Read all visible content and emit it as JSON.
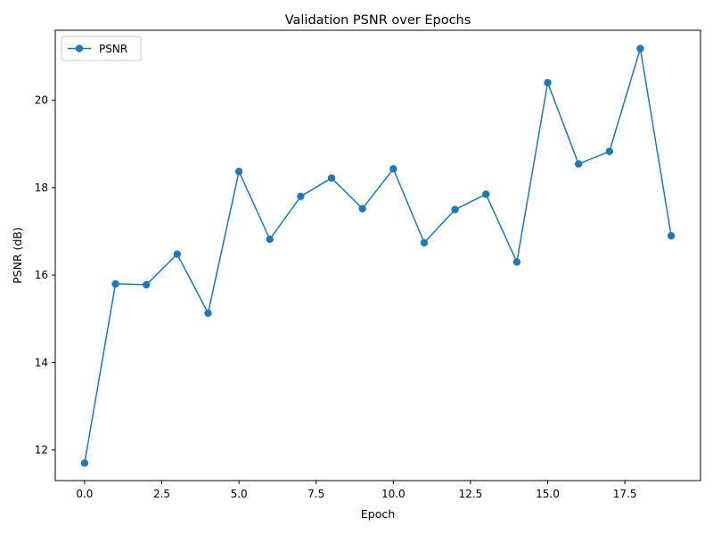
{
  "chart_data": {
    "type": "line",
    "title": "Validation PSNR over Epochs",
    "xlabel": "Epoch",
    "ylabel": "PSNR (dB)",
    "xlim": [
      -0.95,
      19.95
    ],
    "ylim": [
      11.3,
      21.6
    ],
    "xticks": [
      0.0,
      2.5,
      5.0,
      7.5,
      10.0,
      12.5,
      15.0,
      17.5
    ],
    "xtick_labels": [
      "0.0",
      "2.5",
      "5.0",
      "7.5",
      "10.0",
      "12.5",
      "15.0",
      "17.5"
    ],
    "yticks": [
      12,
      14,
      16,
      18,
      20
    ],
    "ytick_labels": [
      "12",
      "14",
      "16",
      "18",
      "20"
    ],
    "grid": false,
    "legend_position": "top-left",
    "series": [
      {
        "name": "PSNR",
        "color": "#1f77b4",
        "marker": "circle",
        "x": [
          0,
          1,
          2,
          3,
          4,
          5,
          6,
          7,
          8,
          9,
          10,
          11,
          12,
          13,
          14,
          15,
          16,
          17,
          18,
          19
        ],
        "y": [
          11.7,
          15.8,
          15.78,
          16.48,
          15.13,
          18.37,
          16.82,
          17.8,
          18.22,
          17.52,
          18.43,
          16.74,
          17.5,
          17.85,
          16.3,
          20.4,
          18.54,
          18.83,
          21.18,
          16.9
        ]
      }
    ]
  }
}
